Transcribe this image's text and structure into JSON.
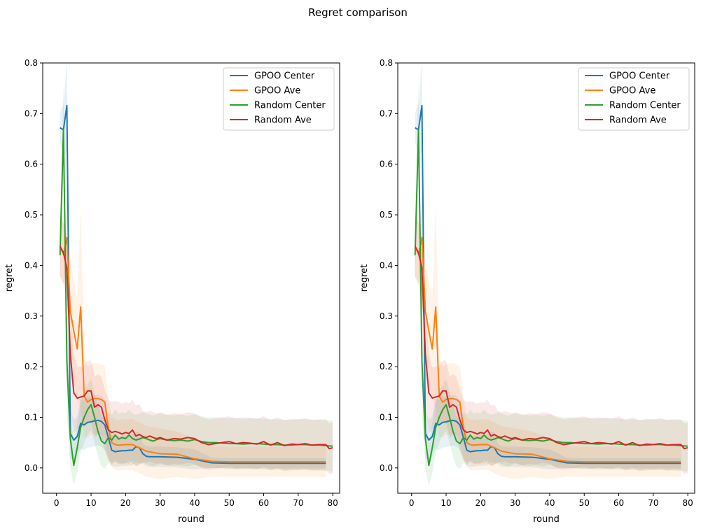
{
  "figure": {
    "suptitle": "Regret comparison"
  },
  "chart_data": [
    {
      "type": "line",
      "title": "",
      "xlabel": "round",
      "ylabel": "regret",
      "xlim": [
        -4,
        82
      ],
      "ylim": [
        -0.05,
        0.8
      ],
      "xticks": [
        0,
        10,
        20,
        30,
        40,
        50,
        60,
        70,
        80
      ],
      "yticks": [
        0.0,
        0.1,
        0.2,
        0.3,
        0.4,
        0.5,
        0.6,
        0.7,
        0.8
      ],
      "grid": false,
      "legend_position": "top-right",
      "series": [
        {
          "name": "GPOO Center",
          "color": "#1f77b4",
          "x": [
            1,
            2,
            3,
            4,
            5,
            6,
            7,
            8,
            9,
            10,
            11,
            12,
            13,
            14,
            15,
            16,
            17,
            18,
            19,
            20,
            21,
            22,
            23,
            24,
            25,
            26,
            27,
            28,
            30,
            35,
            40,
            45,
            50,
            55,
            60,
            65,
            70,
            75,
            78
          ],
          "y": [
            0.672,
            0.668,
            0.716,
            0.068,
            0.055,
            0.062,
            0.088,
            0.085,
            0.09,
            0.091,
            0.093,
            0.094,
            0.092,
            0.085,
            0.06,
            0.035,
            0.032,
            0.033,
            0.034,
            0.034,
            0.035,
            0.035,
            0.042,
            0.04,
            0.028,
            0.023,
            0.022,
            0.022,
            0.022,
            0.021,
            0.017,
            0.01,
            0.009,
            0.009,
            0.009,
            0.009,
            0.009,
            0.009,
            0.009
          ],
          "band": [
            0.03,
            0.05,
            0.09,
            0.05,
            0.04,
            0.04,
            0.05,
            0.05,
            0.05,
            0.05,
            0.05,
            0.05,
            0.05,
            0.05,
            0.04,
            0.03,
            0.03,
            0.03,
            0.03,
            0.03,
            0.03,
            0.03,
            0.03,
            0.03,
            0.02,
            0.02,
            0.02,
            0.02,
            0.02,
            0.02,
            0.02,
            0.01,
            0.01,
            0.01,
            0.01,
            0.01,
            0.01,
            0.01,
            0.01
          ]
        },
        {
          "name": "GPOO Ave",
          "color": "#ff7f0e",
          "x": [
            1,
            2,
            3,
            4,
            5,
            6,
            7,
            8,
            9,
            10,
            11,
            12,
            13,
            14,
            15,
            16,
            17,
            18,
            20,
            22,
            24,
            26,
            30,
            35,
            40,
            45,
            50,
            55,
            60,
            65,
            70,
            75,
            78
          ],
          "y": [
            0.438,
            0.422,
            0.455,
            0.31,
            0.27,
            0.235,
            0.318,
            0.142,
            0.13,
            0.135,
            0.137,
            0.137,
            0.135,
            0.13,
            0.078,
            0.05,
            0.046,
            0.045,
            0.046,
            0.046,
            0.04,
            0.033,
            0.028,
            0.027,
            0.018,
            0.013,
            0.012,
            0.012,
            0.012,
            0.012,
            0.012,
            0.012,
            0.012
          ],
          "band": [
            0.06,
            0.06,
            0.06,
            0.1,
            0.1,
            0.1,
            0.2,
            0.08,
            0.07,
            0.07,
            0.07,
            0.07,
            0.07,
            0.07,
            0.06,
            0.05,
            0.05,
            0.05,
            0.05,
            0.05,
            0.05,
            0.05,
            0.05,
            0.045,
            0.04,
            0.03,
            0.03,
            0.03,
            0.03,
            0.03,
            0.03,
            0.03,
            0.03
          ]
        },
        {
          "name": "Random Center",
          "color": "#2ca02c",
          "x": [
            1,
            2,
            3,
            4,
            5,
            6,
            7,
            8,
            9,
            10,
            11,
            12,
            13,
            14,
            15,
            16,
            17,
            18,
            19,
            20,
            21,
            22,
            23,
            24,
            25,
            26,
            27,
            28,
            29,
            30,
            32,
            34,
            36,
            38,
            40,
            42,
            44,
            46,
            48,
            50,
            52,
            54,
            56,
            58,
            60,
            62,
            64,
            66,
            68,
            70,
            72,
            74,
            76,
            78,
            80
          ],
          "y": [
            0.42,
            0.668,
            0.21,
            0.058,
            0.005,
            0.04,
            0.08,
            0.1,
            0.115,
            0.125,
            0.1,
            0.072,
            0.053,
            0.048,
            0.06,
            0.055,
            0.065,
            0.057,
            0.06,
            0.058,
            0.065,
            0.058,
            0.055,
            0.057,
            0.06,
            0.058,
            0.055,
            0.053,
            0.056,
            0.058,
            0.055,
            0.054,
            0.055,
            0.053,
            0.056,
            0.052,
            0.05,
            0.05,
            0.049,
            0.048,
            0.048,
            0.047,
            0.048,
            0.048,
            0.047,
            0.046,
            0.046,
            0.045,
            0.045,
            0.046,
            0.046,
            0.045,
            0.045,
            0.044,
            0.043
          ],
          "band": [
            0.05,
            0.09,
            0.1,
            0.06,
            0.04,
            0.05,
            0.05,
            0.05,
            0.05,
            0.05,
            0.05,
            0.05,
            0.05,
            0.05,
            0.05,
            0.05,
            0.05,
            0.05,
            0.05,
            0.05,
            0.05,
            0.05,
            0.05,
            0.05,
            0.05,
            0.05,
            0.05,
            0.05,
            0.05,
            0.05,
            0.05,
            0.05,
            0.05,
            0.05,
            0.05,
            0.05,
            0.05,
            0.05,
            0.05,
            0.05,
            0.05,
            0.05,
            0.05,
            0.05,
            0.05,
            0.05,
            0.05,
            0.05,
            0.05,
            0.05,
            0.05,
            0.05,
            0.05,
            0.05,
            0.05
          ]
        },
        {
          "name": "Random Ave",
          "color": "#d62728",
          "x": [
            1,
            2,
            3,
            4,
            5,
            6,
            7,
            8,
            9,
            10,
            11,
            12,
            13,
            14,
            15,
            16,
            17,
            18,
            19,
            20,
            21,
            22,
            23,
            24,
            25,
            26,
            27,
            28,
            29,
            30,
            32,
            34,
            36,
            38,
            40,
            42,
            44,
            46,
            48,
            50,
            52,
            54,
            56,
            58,
            60,
            62,
            64,
            66,
            68,
            70,
            72,
            74,
            76,
            78,
            79,
            80
          ],
          "y": [
            0.438,
            0.425,
            0.395,
            0.225,
            0.148,
            0.138,
            0.14,
            0.142,
            0.152,
            0.152,
            0.12,
            0.125,
            0.12,
            0.095,
            0.075,
            0.07,
            0.072,
            0.07,
            0.067,
            0.07,
            0.068,
            0.075,
            0.063,
            0.066,
            0.062,
            0.06,
            0.063,
            0.06,
            0.058,
            0.06,
            0.055,
            0.058,
            0.057,
            0.06,
            0.058,
            0.05,
            0.046,
            0.048,
            0.05,
            0.052,
            0.048,
            0.05,
            0.049,
            0.047,
            0.052,
            0.045,
            0.05,
            0.044,
            0.047,
            0.046,
            0.048,
            0.045,
            0.046,
            0.046,
            0.038,
            0.04
          ],
          "band": [
            0.06,
            0.06,
            0.06,
            0.1,
            0.08,
            0.06,
            0.06,
            0.06,
            0.06,
            0.06,
            0.06,
            0.06,
            0.06,
            0.06,
            0.06,
            0.06,
            0.06,
            0.06,
            0.06,
            0.06,
            0.06,
            0.06,
            0.06,
            0.06,
            0.05,
            0.05,
            0.05,
            0.05,
            0.05,
            0.05,
            0.05,
            0.05,
            0.05,
            0.05,
            0.05,
            0.05,
            0.05,
            0.05,
            0.05,
            0.05,
            0.05,
            0.05,
            0.05,
            0.05,
            0.05,
            0.05,
            0.05,
            0.05,
            0.05,
            0.05,
            0.05,
            0.05,
            0.05,
            0.05,
            0.05,
            0.05
          ]
        }
      ]
    },
    {
      "type": "line",
      "title": "",
      "xlabel": "round",
      "ylabel": "regret",
      "xlim": [
        -4,
        82
      ],
      "ylim": [
        -0.05,
        0.8
      ],
      "xticks": [
        0,
        10,
        20,
        30,
        40,
        50,
        60,
        70,
        80
      ],
      "yticks": [
        0.0,
        0.1,
        0.2,
        0.3,
        0.4,
        0.5,
        0.6,
        0.7,
        0.8
      ],
      "grid": false,
      "legend_position": "top-right",
      "same_series_as_first_chart": true
    }
  ]
}
